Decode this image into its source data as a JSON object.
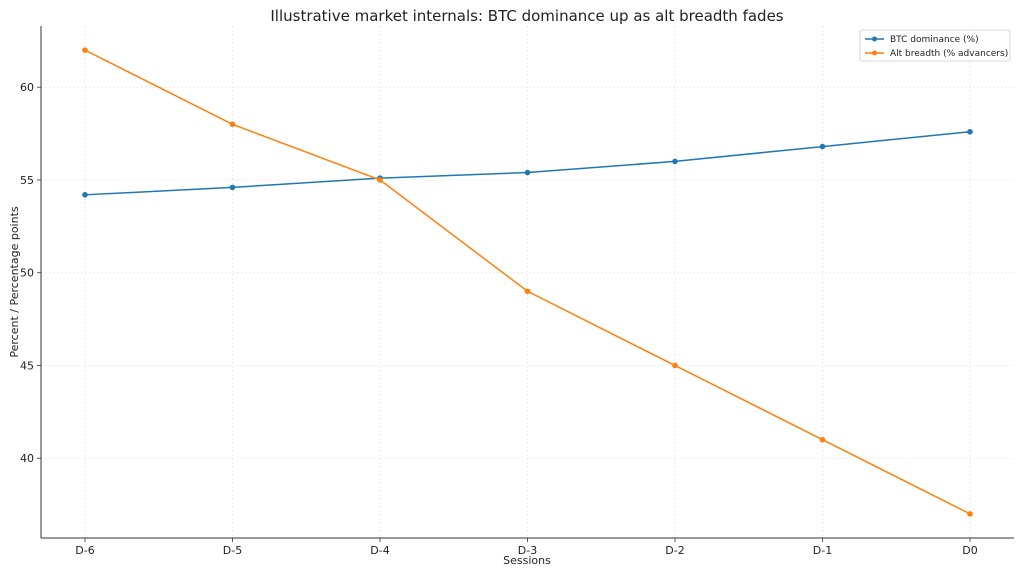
{
  "chart_data": {
    "type": "line",
    "title": "Illustrative market internals: BTC dominance up as alt breadth fades",
    "xlabel": "Sessions",
    "ylabel": "Percent / Percentage points",
    "categories": [
      "D-6",
      "D-5",
      "D-4",
      "D-3",
      "D-2",
      "D-1",
      "D0"
    ],
    "yticks": [
      40,
      45,
      50,
      55,
      60
    ],
    "ylim": [
      35.7,
      63.3
    ],
    "grid": true,
    "legend_position": "top-right",
    "series": [
      {
        "name": "BTC dominance (%)",
        "color": "#1f77b4",
        "values": [
          54.2,
          54.6,
          55.1,
          55.4,
          56.0,
          56.8,
          57.6
        ]
      },
      {
        "name": "Alt breadth (% advancers)",
        "color": "#ff7f0e",
        "values": [
          62.0,
          58.0,
          55.0,
          49.0,
          45.0,
          41.0,
          37.0
        ]
      }
    ]
  }
}
